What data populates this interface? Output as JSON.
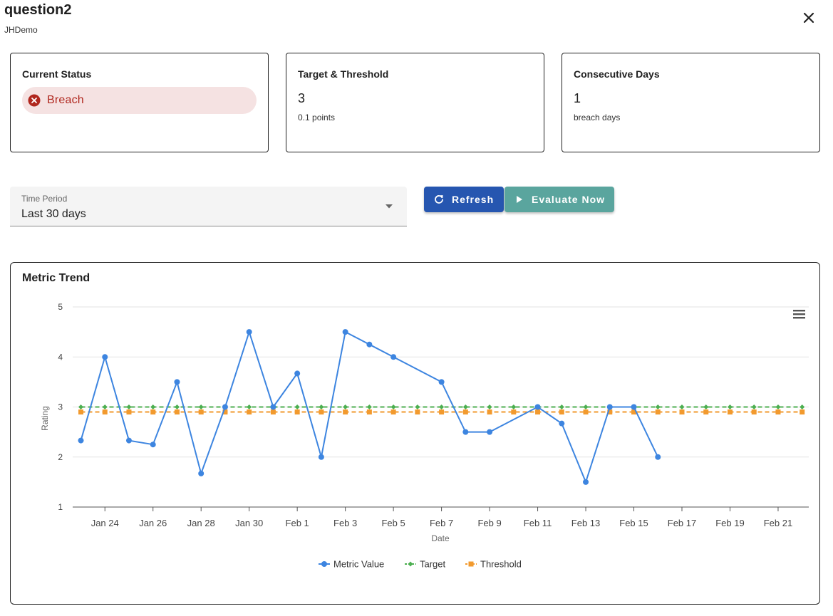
{
  "header": {
    "title": "question2",
    "subtitle": "JHDemo"
  },
  "status_card": {
    "title": "Current Status",
    "status": "Breach",
    "status_color": "#b0271e"
  },
  "target_card": {
    "title": "Target & Threshold",
    "value": "3",
    "caption": "0.1 points"
  },
  "days_card": {
    "title": "Consecutive Days",
    "value": "1",
    "caption": "breach days"
  },
  "time_period": {
    "label": "Time Period",
    "value": "Last 30 days"
  },
  "buttons": {
    "refresh": "Refresh",
    "evaluate": "Evaluate Now"
  },
  "chart_panel": {
    "title": "Metric Trend",
    "menu_icon": "hamburger-menu-icon"
  },
  "chart_data": {
    "type": "line",
    "xlabel": "Date",
    "ylabel": "Rating",
    "ylim": [
      1,
      5
    ],
    "yticks": [
      "1",
      "2",
      "3",
      "4",
      "5"
    ],
    "xticks": [
      "Jan 24",
      "Jan 26",
      "Jan 28",
      "Jan 30",
      "Feb 1",
      "Feb 3",
      "Feb 5",
      "Feb 7",
      "Feb 9",
      "Feb 11",
      "Feb 13",
      "Feb 15",
      "Feb 17",
      "Feb 19",
      "Feb 21"
    ],
    "xlim": [
      "Jan 22",
      "Feb 22"
    ],
    "grid": true,
    "legend": "bottom-center",
    "series": [
      {
        "name": "Metric Value",
        "color": "#3d85e0",
        "style": "solid",
        "marker": "circle",
        "points": [
          [
            "Jan 23",
            2.33
          ],
          [
            "Jan 24",
            4.0
          ],
          [
            "Jan 25",
            2.33
          ],
          [
            "Jan 26",
            2.25
          ],
          [
            "Jan 27",
            3.5
          ],
          [
            "Jan 28",
            1.67
          ],
          [
            "Jan 29",
            3.0
          ],
          [
            "Jan 30",
            4.5
          ],
          [
            "Jan 31",
            3.0
          ],
          [
            "Feb 1",
            3.67
          ],
          [
            "Feb 2",
            2.0
          ],
          [
            "Feb 3",
            4.5
          ],
          [
            "Feb 4",
            4.25
          ],
          [
            "Feb 5",
            4.0
          ],
          [
            "Feb 7",
            3.5
          ],
          [
            "Feb 8",
            2.5
          ],
          [
            "Feb 9",
            2.5
          ],
          [
            "Feb 11",
            3.0
          ],
          [
            "Feb 12",
            2.67
          ],
          [
            "Feb 13",
            1.5
          ],
          [
            "Feb 14",
            3.0
          ],
          [
            "Feb 15",
            3.0
          ],
          [
            "Feb 16",
            2.0
          ]
        ]
      },
      {
        "name": "Target",
        "color": "#4caf50",
        "style": "dashed",
        "marker": "diamond",
        "value": 3.0,
        "from": "Jan 23",
        "to": "Feb 22"
      },
      {
        "name": "Threshold",
        "color": "#f29a2e",
        "style": "dashed",
        "marker": "square",
        "value": 2.9,
        "from": "Jan 23",
        "to": "Feb 22"
      }
    ]
  }
}
